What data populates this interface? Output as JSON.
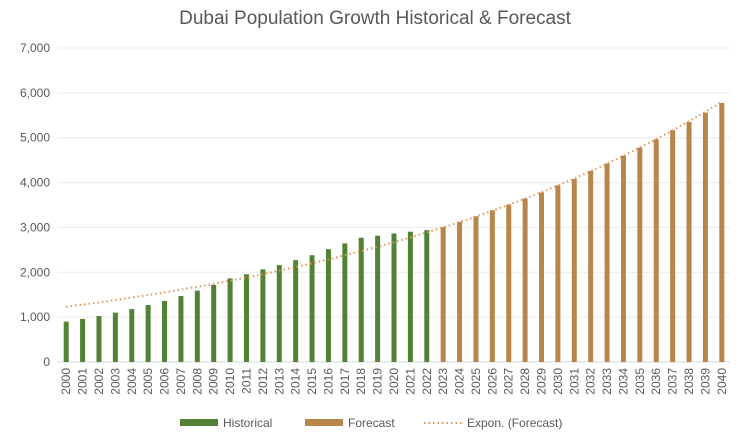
{
  "chart_data": {
    "type": "bar",
    "title": "Dubai Population Growth Historical & Forecast",
    "xlabel": "",
    "ylabel": "",
    "ylim": [
      0,
      7000
    ],
    "yticks": [
      "0",
      "1,000",
      "2,000",
      "3,000",
      "4,000",
      "5,000",
      "6,000",
      "7,000"
    ],
    "ytick_values": [
      0,
      1000,
      2000,
      3000,
      4000,
      5000,
      6000,
      7000
    ],
    "grid": true,
    "legend_placement": "bottom",
    "categories": [
      "2000",
      "2001",
      "2002",
      "2003",
      "2004",
      "2005",
      "2006",
      "2007",
      "2008",
      "2009",
      "2010",
      "2011",
      "2012",
      "2013",
      "2014",
      "2015",
      "2016",
      "2017",
      "2018",
      "2019",
      "2020",
      "2021",
      "2022",
      "2023",
      "2024",
      "2025",
      "2026",
      "2027",
      "2028",
      "2029",
      "2030",
      "2031",
      "2032",
      "2033",
      "2034",
      "2035",
      "2036",
      "2037",
      "2038",
      "2039",
      "2040"
    ],
    "series": [
      {
        "name": "Historical",
        "color": "#548235",
        "values": [
          900,
          960,
          1025,
          1100,
          1180,
          1270,
          1360,
          1470,
          1590,
          1720,
          1865,
          1955,
          2065,
          2160,
          2270,
          2380,
          2515,
          2645,
          2770,
          2815,
          2865,
          2905,
          2940,
          null,
          null,
          null,
          null,
          null,
          null,
          null,
          null,
          null,
          null,
          null,
          null,
          null,
          null,
          null,
          null,
          null,
          null
        ]
      },
      {
        "name": "Forecast",
        "color": "#B8864B",
        "values": [
          null,
          null,
          null,
          null,
          null,
          null,
          null,
          null,
          null,
          null,
          null,
          null,
          null,
          null,
          null,
          null,
          null,
          null,
          null,
          null,
          null,
          null,
          null,
          3010,
          3125,
          3250,
          3385,
          3510,
          3645,
          3780,
          3935,
          4080,
          4260,
          4425,
          4600,
          4780,
          4965,
          5170,
          5350,
          5560,
          5775
        ]
      }
    ],
    "trendline": {
      "name": "Expon. (Forecast)",
      "type": "exponential",
      "style": "dotted",
      "color": "#E0955A",
      "start_value": 1230,
      "end_value": 5800
    }
  }
}
